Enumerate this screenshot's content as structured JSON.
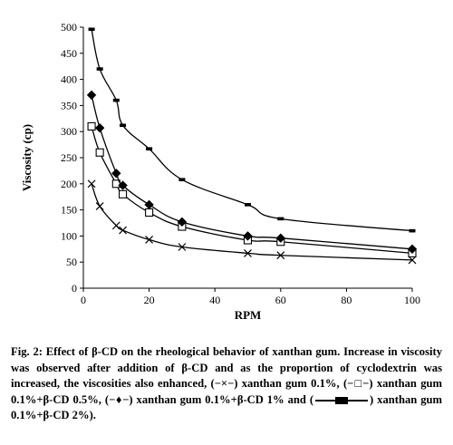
{
  "chart_data": {
    "type": "line",
    "xlabel": "RPM",
    "ylabel": "Viscosity (cp)",
    "xlim": [
      0,
      100
    ],
    "ylim": [
      0,
      500
    ],
    "xticks": [
      0,
      20,
      40,
      60,
      80,
      100
    ],
    "yticks": [
      0,
      50,
      100,
      150,
      200,
      250,
      300,
      350,
      400,
      450,
      500
    ],
    "x": [
      2.5,
      5,
      10,
      12,
      20,
      30,
      50,
      60,
      100
    ],
    "series": [
      {
        "name": "xanthan gum 0.1%",
        "marker": "x",
        "values": [
          200,
          157,
          120,
          111,
          93,
          79,
          67,
          63,
          54
        ]
      },
      {
        "name": "xanthan gum 0.1%+β-CD 0.5%",
        "marker": "square",
        "values": [
          310,
          260,
          200,
          180,
          145,
          118,
          92,
          89,
          67
        ]
      },
      {
        "name": "xanthan gum 0.1%+β-CD 1%",
        "marker": "diamond",
        "values": [
          370,
          307,
          220,
          197,
          160,
          127,
          100,
          96,
          75
        ]
      },
      {
        "name": "xanthan gum 0.1%+β-CD 2%",
        "marker": "bar",
        "values": [
          496,
          420,
          360,
          312,
          267,
          208,
          160,
          133,
          110
        ]
      }
    ],
    "grid": false,
    "line_color": "#000000"
  },
  "caption": {
    "title": "Fig. 2: Effect of β-CD on the rheological behavior of xanthan gum.",
    "body": "Increase in viscosity was observed after addition of β-CD and as the proportion of cyclodextrin was increased, the viscosities also enhanced,",
    "legend_1": "(−×−) xanthan gum 0.1%,",
    "legend_2": "(−□−) xanthan gum 0.1%+β-CD 0.5%,",
    "legend_3": "(−♦−) xanthan gum 0.1%+β-CD 1% and",
    "legend_4_open": "(",
    "legend_4_close": ") xanthan gum 0.1%+β-CD 2%)."
  }
}
